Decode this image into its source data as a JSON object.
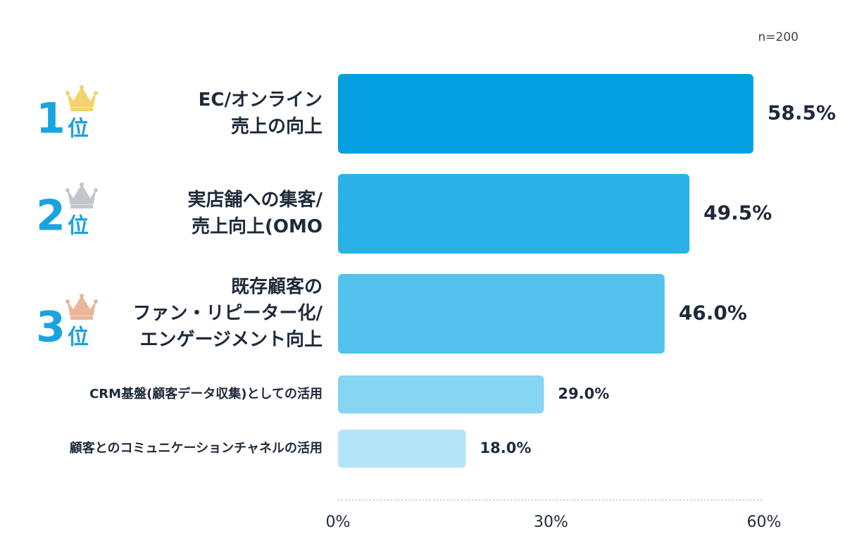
{
  "chart_data": {
    "type": "bar",
    "orientation": "horizontal",
    "sample_note": "n=200",
    "categories": [
      [
        "EC/オンライン",
        "売上の向上"
      ],
      [
        "実店舗への集客/",
        "売上向上(OMO"
      ],
      [
        "既存顧客の",
        "ファン・リピーター化/",
        "エンゲージメント向上"
      ],
      [
        "CRM基盤(顧客データ収集)としての活用"
      ],
      [
        "顧客とのコミュニケーションチャネルの活用"
      ]
    ],
    "values": [
      58.5,
      49.5,
      46.0,
      29.0,
      18.0
    ],
    "value_labels": [
      "58.5%",
      "49.5%",
      "46.0%",
      "29.0%",
      "18.0%"
    ],
    "bar_colors": [
      "#049fe0",
      "#2ab2e6",
      "#52c2ec",
      "#86d5f2",
      "#b4e4f7"
    ],
    "xlim": [
      0,
      60
    ],
    "xticks": [
      {
        "value": 0,
        "label": "0%"
      },
      {
        "value": 30,
        "label": "30%"
      },
      {
        "value": 60,
        "label": "60%"
      }
    ],
    "ranks": [
      {
        "number": "1",
        "suffix": "位",
        "crown": "gold-crown-icon",
        "crown_color": "#f3d36b"
      },
      {
        "number": "2",
        "suffix": "位",
        "crown": "silver-crown-icon",
        "crown_color": "#c3c7cc"
      },
      {
        "number": "3",
        "suffix": "位",
        "crown": "bronze-crown-icon",
        "crown_color": "#eab69a"
      }
    ],
    "accent_color": "#1aa3e0"
  }
}
